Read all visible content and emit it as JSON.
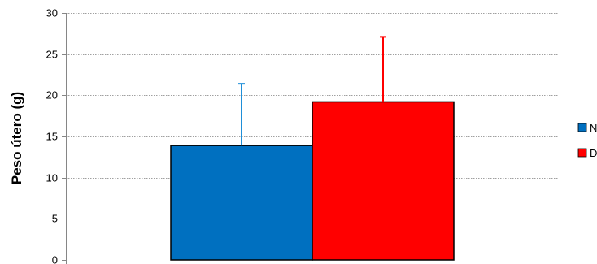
{
  "chart_data": {
    "type": "bar",
    "ylabel": "Peso útero (g)",
    "xlabel": "",
    "ylim": [
      0,
      30
    ],
    "yticks": [
      0,
      5,
      10,
      15,
      20,
      25,
      30
    ],
    "grid": true,
    "legend_position": "right",
    "series": [
      {
        "name": "N",
        "value": 13.9,
        "error": 7.5,
        "color": "#0070C0",
        "error_color": "#1F8FD8"
      },
      {
        "name": "D",
        "value": 19.2,
        "error": 7.9,
        "color": "#FF0000",
        "error_color": "#FF0000"
      }
    ]
  }
}
